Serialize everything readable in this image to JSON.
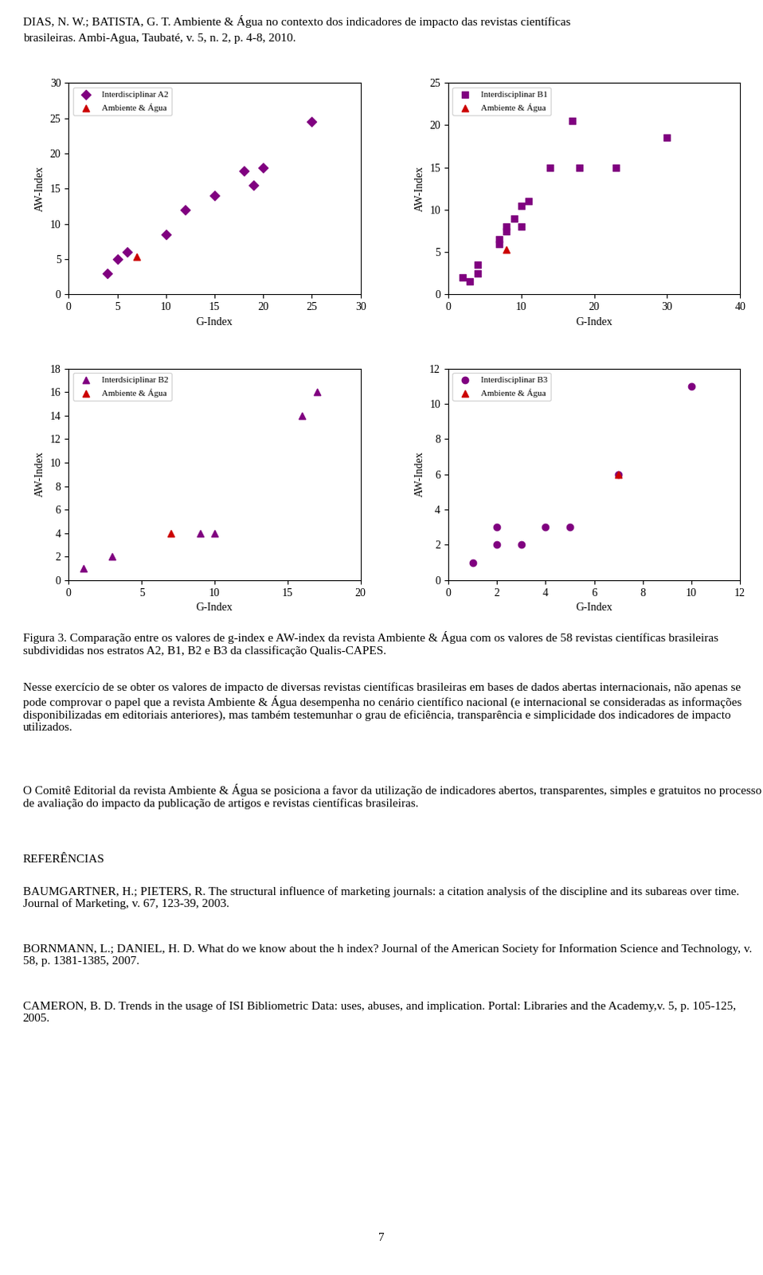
{
  "chart_data": [
    {
      "type": "scatter",
      "xlabel": "G-Index",
      "ylabel": "AW-Index",
      "xlim": [
        0,
        30
      ],
      "ylim": [
        0,
        30
      ],
      "xticks": [
        0,
        5,
        10,
        15,
        20,
        25,
        30
      ],
      "yticks": [
        0,
        5,
        10,
        15,
        20,
        25,
        30
      ],
      "grid": false,
      "legend": "upper left",
      "series": [
        {
          "name": "Interdisciplinar A2",
          "color": "#800080",
          "marker": "diamond",
          "x": [
            4,
            5,
            6,
            10,
            12,
            15,
            18,
            19,
            20,
            25
          ],
          "values": [
            3,
            5,
            6,
            8.5,
            12,
            14,
            17.5,
            15.5,
            18,
            24.5
          ]
        },
        {
          "name": "Ambiente & Água",
          "color": "#cc0000",
          "marker": "triangle",
          "x": [
            7
          ],
          "values": [
            5.3
          ]
        }
      ]
    },
    {
      "type": "scatter",
      "xlabel": "G-Index",
      "ylabel": "AW-Index",
      "xlim": [
        0,
        40
      ],
      "ylim": [
        0,
        25
      ],
      "xticks": [
        0,
        10,
        20,
        30,
        40
      ],
      "yticks": [
        0,
        5,
        10,
        15,
        20,
        25
      ],
      "grid": false,
      "legend": "upper left",
      "series": [
        {
          "name": "Interdisciplinar B1",
          "color": "#800080",
          "marker": "square",
          "x": [
            2,
            3,
            4,
            4,
            7,
            7,
            8,
            8,
            9,
            10,
            10,
            11,
            14,
            17,
            18,
            23,
            30
          ],
          "values": [
            2,
            1.5,
            2.5,
            3.5,
            6,
            6.5,
            7.5,
            8,
            9,
            8,
            10.5,
            11,
            15,
            20.5,
            15,
            15,
            18.5
          ]
        },
        {
          "name": "Ambiente & Água",
          "color": "#cc0000",
          "marker": "triangle",
          "x": [
            8
          ],
          "values": [
            5.3
          ]
        }
      ]
    },
    {
      "type": "scatter",
      "xlabel": "G-Index",
      "ylabel": "AW-Index",
      "xlim": [
        0,
        20
      ],
      "ylim": [
        0,
        18
      ],
      "xticks": [
        0,
        5,
        10,
        15,
        20
      ],
      "yticks": [
        0,
        2,
        4,
        6,
        8,
        10,
        12,
        14,
        16,
        18
      ],
      "grid": false,
      "legend": "upper left",
      "series": [
        {
          "name": "Interdsiciplinar B2",
          "color": "#800080",
          "marker": "triangle",
          "x": [
            1,
            3,
            9,
            10,
            16,
            17
          ],
          "values": [
            1,
            2,
            4,
            4,
            14,
            16
          ]
        },
        {
          "name": "Ambiente & Água",
          "color": "#cc0000",
          "marker": "triangle",
          "x": [
            7
          ],
          "values": [
            4
          ]
        }
      ]
    },
    {
      "type": "scatter",
      "xlabel": "G-Index",
      "ylabel": "AW-Index",
      "xlim": [
        0,
        12
      ],
      "ylim": [
        0,
        12
      ],
      "xticks": [
        0,
        2,
        4,
        6,
        8,
        10,
        12
      ],
      "yticks": [
        0,
        2,
        4,
        6,
        8,
        10,
        12
      ],
      "grid": false,
      "legend": "upper left",
      "series": [
        {
          "name": "Interdisciplinar B3",
          "color": "#800080",
          "marker": "circle",
          "x": [
            1,
            2,
            2,
            3,
            4,
            5,
            7,
            10
          ],
          "values": [
            1,
            2,
            3,
            2,
            3,
            3,
            6,
            11
          ]
        },
        {
          "name": "Ambiente & Água",
          "color": "#cc0000",
          "marker": "triangle",
          "x": [
            7
          ],
          "values": [
            6
          ]
        }
      ]
    }
  ],
  "annotations": [
    "DIAS, N. W.; BATISTA, G. T. Ambiente & Água no contexto dos indicadores de impacto das revistas científicas",
    "brasileiras. Ambi-Agua, Taubaté, v. 5, n. 2, p. 4-8, 2010.",
    "Figura 3. Comparação entre os valores de g-index e AW-index da revista Ambiente & Água com os valores de 58 revistas científicas brasileiras subdivididas nos estratos A2, B1, B2 e B3 da classificação Qualis-CAPES.",
    "Nesse exercício de se obter os valores de impacto de diversas revistas científicas brasileiras em bases de dados abertas internacionais, não apenas se pode comprovar o papel que a revista Ambiente & Água desempenha no cenário científico nacional (e internacional se consideradas as informações disponibilizadas em editoriais anteriores), mas também testemunhar o grau de eficiência, transparência e simplicidade dos indicadores de impacto utilizados.",
    "O Comitê Editorial da revista Ambiente & Água se posiciona a favor da utilização de indicadores abertos, transparentes, simples e gratuitos no processo de avaliação do impacto da publicação de artigos e revistas científicas brasileiras.",
    "REFERÊNCIAS",
    "BAUMGARTNER, H.; PIETERS, R. The structural influence of marketing journals: a citation analysis of the discipline and its subareas over time. Journal of Marketing, v. 67, 123-39, 2003.",
    "BORNMANN, L.; DANIEL, H. D. What do we know about the h index? Journal of the American Society for Information Science and Technology, v. 58, p. 1381-1385, 2007.",
    "CAMERON, B. D. Trends in the usage of ISI Bibliometric Data: uses, abuses, and implication. Portal: Libraries and the Academy,v. 5, p. 105-125, 2005.",
    "7"
  ]
}
